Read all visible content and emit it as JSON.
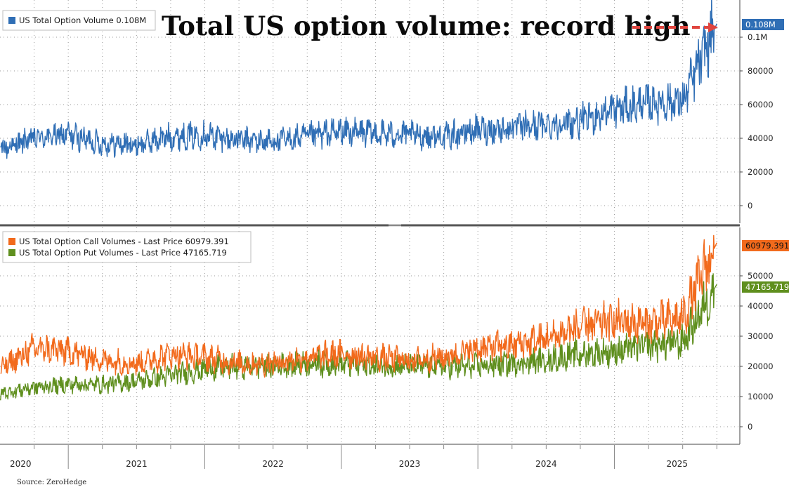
{
  "headline": "Total US option volume: record high",
  "source": "Source: ZeroHedge",
  "colors": {
    "total": "#2f6eb5",
    "call": "#f26a1c",
    "put": "#5f8f1e",
    "grid": "#9a9a9a",
    "arrow": "#e0453f",
    "divider": "#555555"
  },
  "chart_data": [
    {
      "type": "line",
      "legend": "US Total Option Volume 0.108M",
      "last_value_label": "0.108M",
      "ylim": [
        0,
        110000
      ],
      "y_ticks": [
        {
          "value": 0,
          "label": "0"
        },
        {
          "value": 20000,
          "label": "20000"
        },
        {
          "value": 40000,
          "label": "40000"
        },
        {
          "value": 60000,
          "label": "60000"
        },
        {
          "value": 80000,
          "label": "80000"
        },
        {
          "value": 100000,
          "label": "0.1M"
        }
      ],
      "legend_position": "top-left",
      "grid": true,
      "series": [
        {
          "name": "US Total Option Volume",
          "color": "#2f6eb5",
          "x": [
            "2020-07",
            "2020-10",
            "2021-01",
            "2021-04",
            "2021-07",
            "2021-10",
            "2022-01",
            "2022-04",
            "2022-07",
            "2022-10",
            "2023-01",
            "2023-04",
            "2023-07",
            "2023-10",
            "2024-01",
            "2024-04",
            "2024-07",
            "2024-10",
            "2025-01",
            "2025-04",
            "2025-07",
            "2025-10"
          ],
          "values": [
            33000,
            40000,
            42000,
            37000,
            36000,
            41000,
            42000,
            39000,
            38000,
            41000,
            44000,
            43000,
            42000,
            41000,
            45000,
            46000,
            48000,
            50000,
            57000,
            61000,
            62000,
            108000
          ]
        }
      ]
    },
    {
      "type": "line",
      "legend_position": "top-left",
      "grid": true,
      "ylim": [
        0,
        62000
      ],
      "y_ticks": [
        {
          "value": 0,
          "label": "0"
        },
        {
          "value": 10000,
          "label": "10000"
        },
        {
          "value": 20000,
          "label": "20000"
        },
        {
          "value": 30000,
          "label": "30000"
        },
        {
          "value": 40000,
          "label": "40000"
        },
        {
          "value": 50000,
          "label": "50000"
        }
      ],
      "x_labels": [
        "2020",
        "2021",
        "2022",
        "2023",
        "2024",
        "2025"
      ],
      "series": [
        {
          "name": "US Total Option Call Volumes",
          "legend": "US Total Option Call Volumes - Last Price 60979.391",
          "last_value_label": "60979.391",
          "color": "#f26a1c",
          "x": [
            "2020-07",
            "2020-10",
            "2021-01",
            "2021-04",
            "2021-07",
            "2021-10",
            "2022-01",
            "2022-04",
            "2022-07",
            "2022-10",
            "2023-01",
            "2023-04",
            "2023-07",
            "2023-10",
            "2024-01",
            "2024-04",
            "2024-07",
            "2024-10",
            "2025-01",
            "2025-04",
            "2025-07",
            "2025-10"
          ],
          "values": [
            19000,
            26000,
            25000,
            22000,
            21000,
            24000,
            23000,
            21000,
            21000,
            23000,
            24000,
            23000,
            22000,
            23000,
            26000,
            27000,
            29000,
            33000,
            35000,
            34000,
            36000,
            60979.391
          ]
        },
        {
          "name": "US Total Option Put Volumes",
          "legend": "US Total Option Put Volumes - Last Price 47165.719",
          "last_value_label": "47165.719",
          "color": "#5f8f1e",
          "x": [
            "2020-07",
            "2020-10",
            "2021-01",
            "2021-04",
            "2021-07",
            "2021-10",
            "2022-01",
            "2022-04",
            "2022-07",
            "2022-10",
            "2023-01",
            "2023-04",
            "2023-07",
            "2023-10",
            "2024-01",
            "2024-04",
            "2024-07",
            "2024-10",
            "2025-01",
            "2025-04",
            "2025-07",
            "2025-10"
          ],
          "values": [
            11000,
            13000,
            14000,
            14000,
            15000,
            17000,
            19000,
            20000,
            20000,
            21000,
            21000,
            20000,
            20000,
            20000,
            20000,
            21000,
            22000,
            24000,
            25000,
            27000,
            28000,
            47165.719
          ]
        }
      ]
    }
  ]
}
